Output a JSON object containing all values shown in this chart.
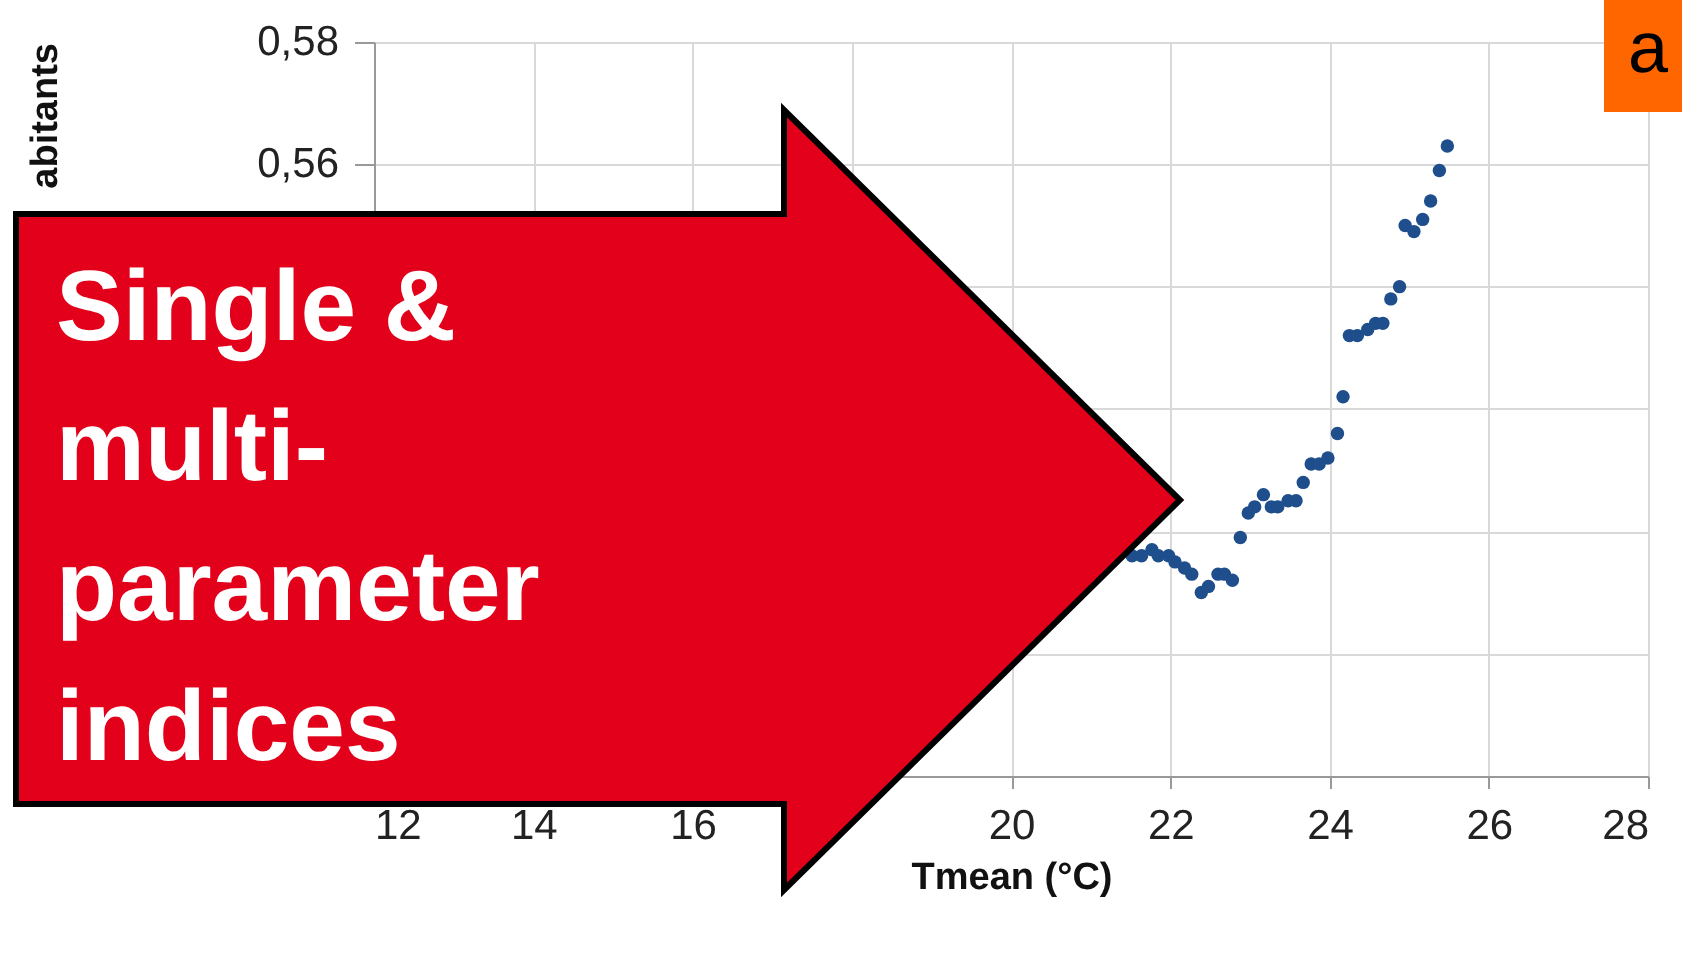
{
  "chart_data": {
    "type": "scatter",
    "xlabel": "Tmean (°C)",
    "ylabel": "abitants",
    "annotations": [
      "Single & multi-parameter indices",
      "a"
    ],
    "x": [
      21.52,
      21.64,
      21.77,
      21.85,
      21.98,
      22.06,
      22.18,
      22.27,
      22.39,
      22.48,
      22.6,
      22.68,
      22.78,
      22.88,
      22.98,
      23.06,
      23.17,
      23.27,
      23.35,
      23.48,
      23.58,
      23.67,
      23.77,
      23.87,
      23.98,
      24.1,
      24.17,
      24.25,
      24.35,
      24.48,
      24.58,
      24.67,
      24.77,
      24.88,
      24.95,
      25.06,
      25.17,
      25.27,
      25.38,
      25.48
    ],
    "series": [
      {
        "color": "#1f4e8c",
        "values": [
          0.496,
          0.496,
          0.497,
          0.496,
          0.496,
          0.495,
          0.494,
          0.493,
          0.49,
          0.491,
          0.493,
          0.493,
          0.492,
          0.499,
          0.503,
          0.504,
          0.506,
          0.504,
          0.504,
          0.505,
          0.505,
          0.508,
          0.511,
          0.511,
          0.512,
          0.516,
          0.522,
          0.532,
          0.532,
          0.533,
          0.534,
          0.534,
          0.538,
          0.54,
          0.55,
          0.549,
          0.551,
          0.554,
          0.559,
          0.563
        ]
      }
    ],
    "xlim": [
      12,
      28
    ],
    "xticks": [
      12,
      14,
      16,
      {
        "value": 18,
        "label": null
      },
      20,
      22,
      24,
      26,
      28
    ],
    "ylim": [
      0.46,
      0.58
    ],
    "yticks": [
      {
        "value": 0.46,
        "label": null
      },
      {
        "value": 0.48,
        "label": null
      },
      {
        "value": 0.5,
        "label": null
      },
      {
        "value": 0.52,
        "label": null
      },
      {
        "value": 0.54,
        "label": null
      },
      {
        "value": 0.56,
        "label": "0,56"
      },
      {
        "value": 0.58,
        "label": "0,58"
      }
    ],
    "grid": true,
    "marker": "circle"
  }
}
